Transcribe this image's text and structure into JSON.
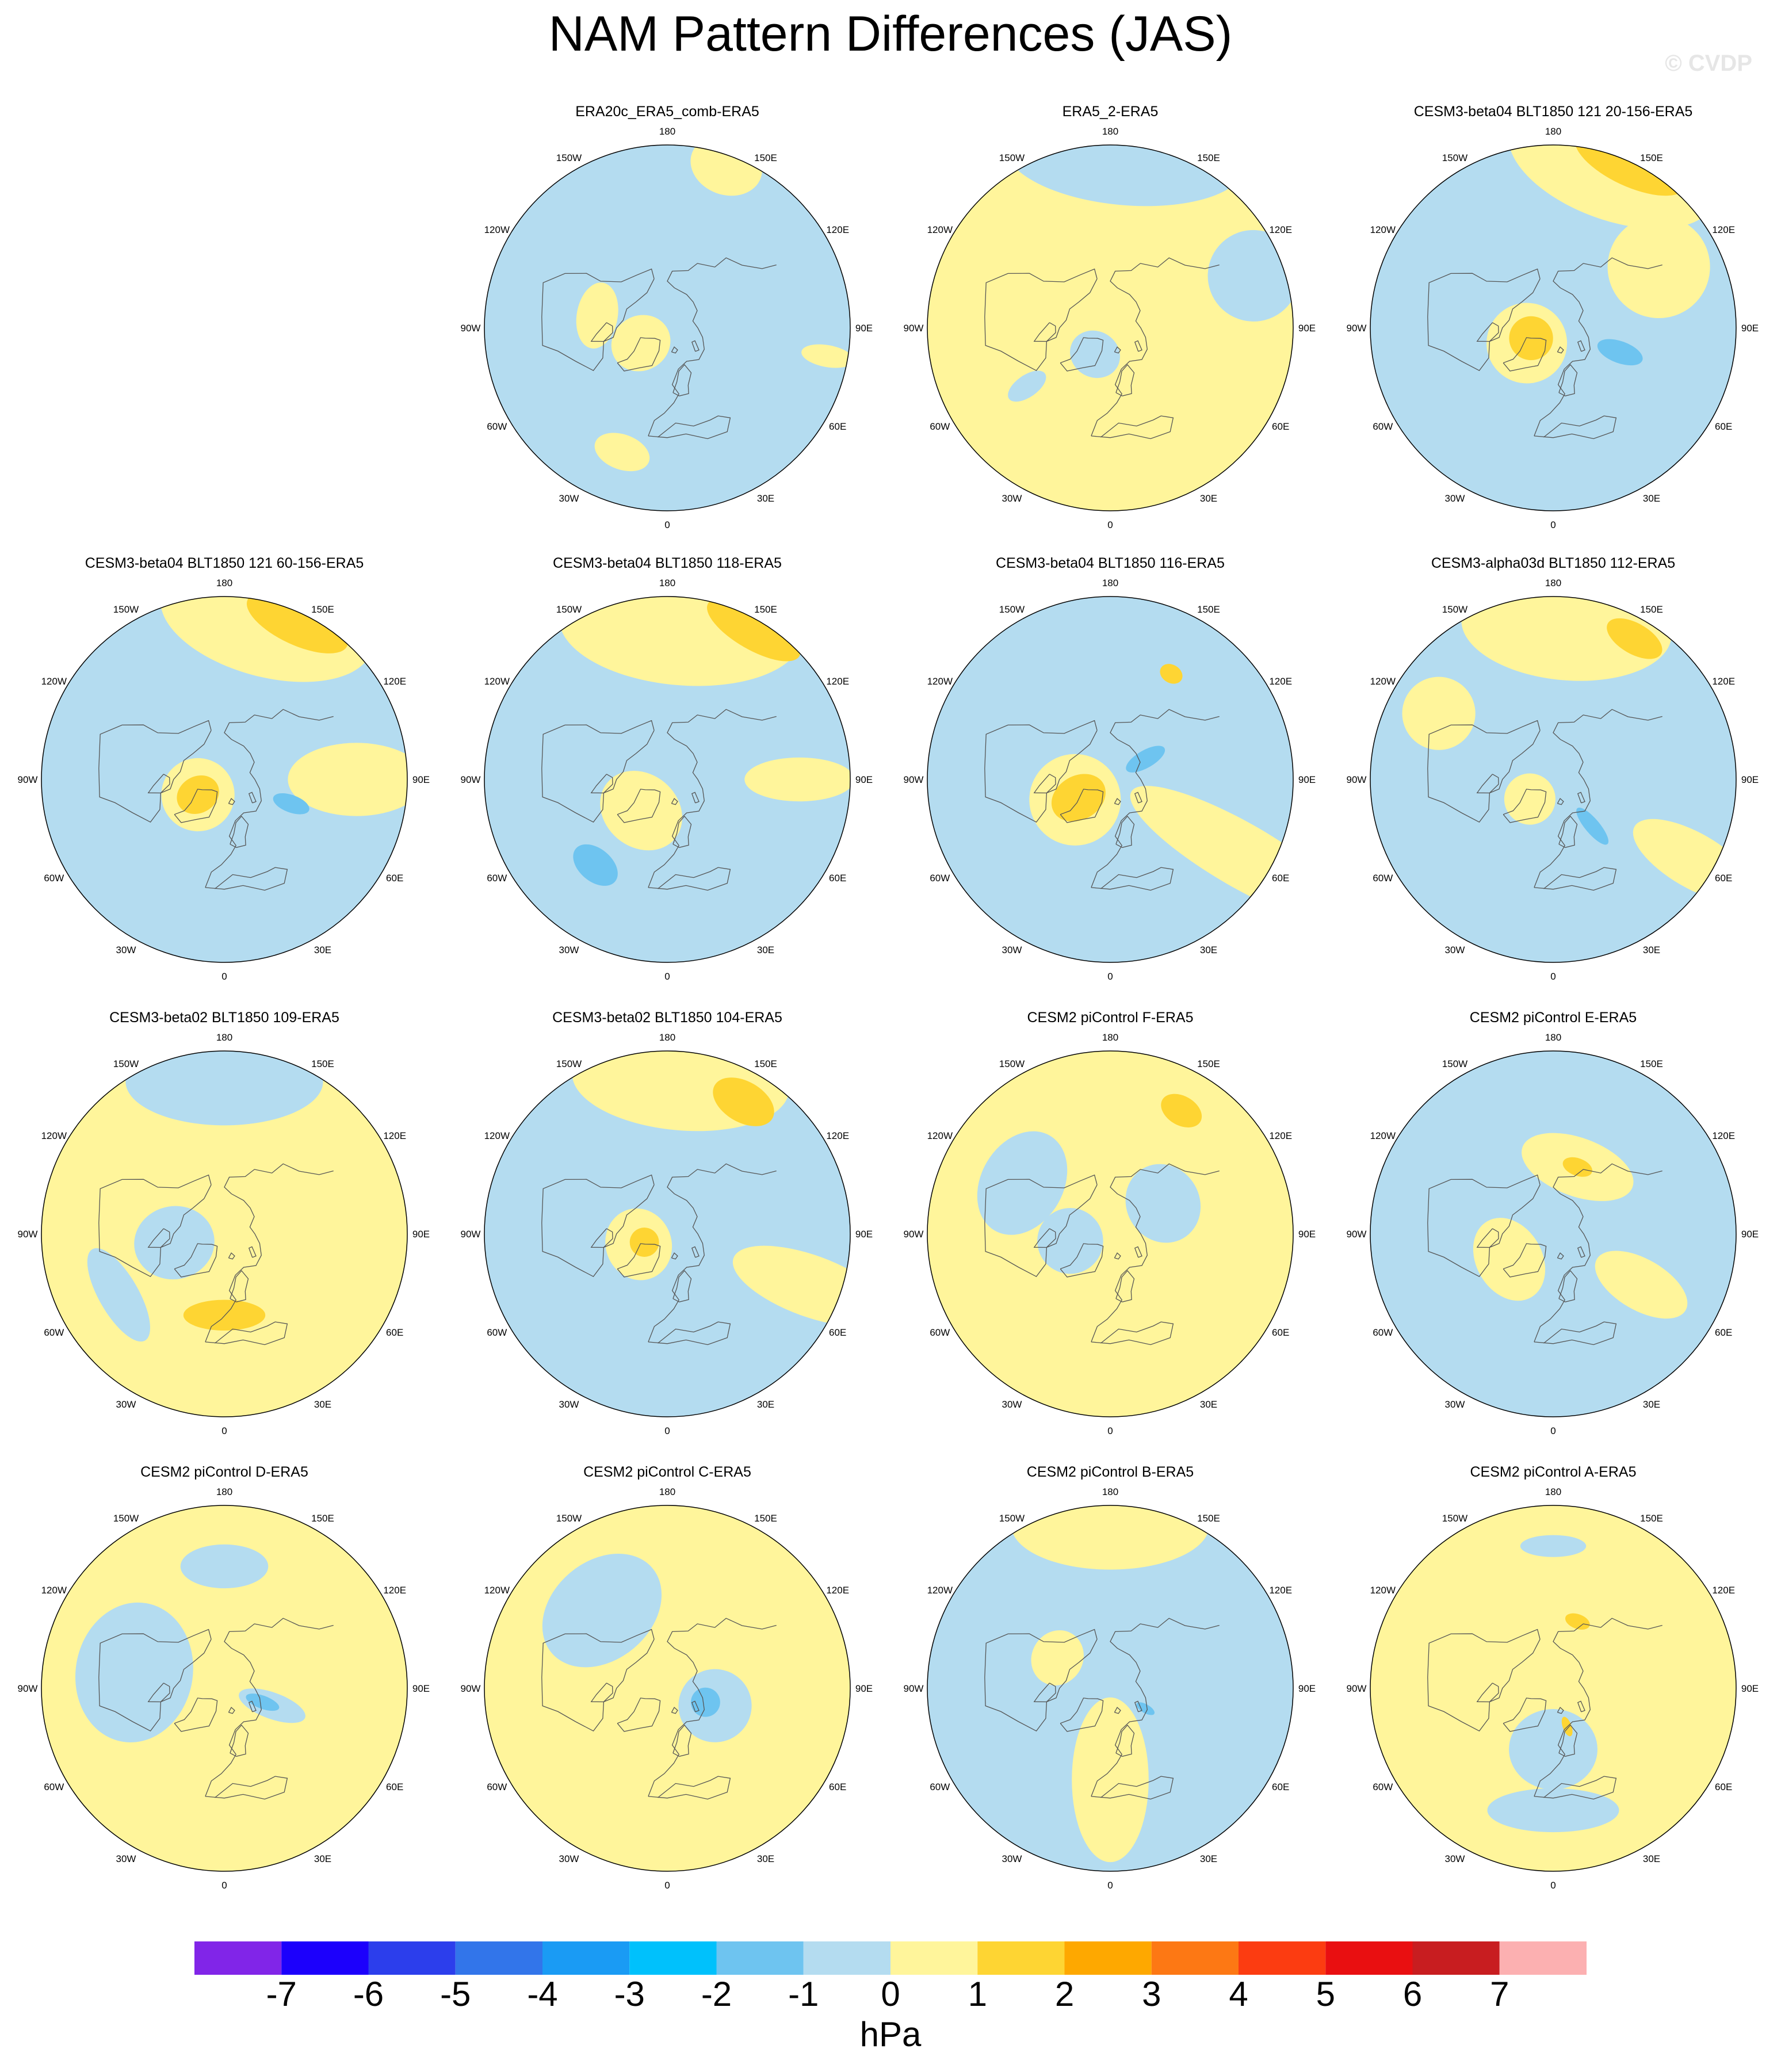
{
  "title": "NAM Pattern Differences (JAS)",
  "watermark": "© CVDP",
  "lon_labels": [
    "180",
    "150E",
    "120E",
    "90E",
    "60E",
    "30E",
    "0",
    "30W",
    "60W",
    "90W",
    "120W",
    "150W"
  ],
  "panels": [
    {
      "title": "ERA20c_ERA5_comb-ERA5",
      "base": "neg",
      "blobs": [
        {
          "lon": -60,
          "lat": 75,
          "r": 0.15,
          "rx": 1.0,
          "ry": 1.1,
          "level": "pos1"
        },
        {
          "lon": -100,
          "lat": 55,
          "r": 0.14,
          "rx": 1.3,
          "ry": 0.8,
          "level": "pos1"
        },
        {
          "lon": -20,
          "lat": 25,
          "r": 0.12,
          "rx": 1.3,
          "ry": 0.8,
          "level": "pos1"
        },
        {
          "lon": 160,
          "lat": 5,
          "r": 0.2,
          "rx": 1.0,
          "ry": 0.8,
          "level": "pos1"
        },
        {
          "lon": 80,
          "lat": 10,
          "r": 0.12,
          "rx": 0.5,
          "ry": 1.2,
          "level": "pos1"
        }
      ]
    },
    {
      "title": "ERA5_2-ERA5",
      "base": "pos1",
      "blobs": [
        {
          "lon": 175,
          "lat": 5,
          "r": 0.3,
          "rx": 2.2,
          "ry": 0.9,
          "level": "neg"
        },
        {
          "lon": 110,
          "lat": 15,
          "r": 0.25,
          "rx": 1.0,
          "ry": 1.0,
          "level": "neg"
        },
        {
          "lon": -30,
          "lat": 75,
          "r": 0.14,
          "rx": 1.0,
          "ry": 0.9,
          "level": "neg"
        },
        {
          "lon": -55,
          "lat": 40,
          "r": 0.1,
          "rx": 0.6,
          "ry": 1.2,
          "level": "neg"
        }
      ]
    },
    {
      "title": "CESM3-beta04 BLT1850 121 20-156-ERA5",
      "base": "neg",
      "blobs": [
        {
          "lon": 160,
          "lat": 5,
          "r": 0.33,
          "rx": 1.8,
          "ry": 0.9,
          "level": "pos1"
        },
        {
          "lon": 155,
          "lat": 0,
          "r": 0.22,
          "rx": 1.5,
          "ry": 0.6,
          "level": "pos2"
        },
        {
          "lon": 120,
          "lat": 30,
          "r": 0.28,
          "rx": 1.0,
          "ry": 1.0,
          "level": "pos1"
        },
        {
          "lon": -60,
          "lat": 75,
          "r": 0.22,
          "rx": 1.0,
          "ry": 1.0,
          "level": "pos1"
        },
        {
          "lon": -65,
          "lat": 78,
          "r": 0.12,
          "rx": 1.0,
          "ry": 1.0,
          "level": "pos2"
        },
        {
          "lon": 70,
          "lat": 55,
          "r": 0.1,
          "rx": 0.6,
          "ry": 1.3,
          "level": "neg2"
        }
      ]
    },
    {
      "title": "CESM3-beta04 BLT1850 121 60-156-ERA5",
      "base": "neg",
      "blobs": [
        {
          "lon": 165,
          "lat": 10,
          "r": 0.33,
          "rx": 1.8,
          "ry": 0.9,
          "level": "pos1"
        },
        {
          "lon": 155,
          "lat": 5,
          "r": 0.2,
          "rx": 1.5,
          "ry": 0.6,
          "level": "pos2"
        },
        {
          "lon": 90,
          "lat": 25,
          "r": 0.25,
          "rx": 0.8,
          "ry": 1.5,
          "level": "pos1"
        },
        {
          "lon": -60,
          "lat": 75,
          "r": 0.2,
          "rx": 1.0,
          "ry": 1.0,
          "level": "pos1"
        },
        {
          "lon": -60,
          "lat": 75,
          "r": 0.1,
          "rx": 1.0,
          "ry": 1.2,
          "level": "pos2"
        },
        {
          "lon": 70,
          "lat": 55,
          "r": 0.08,
          "rx": 0.6,
          "ry": 1.3,
          "level": "neg2"
        }
      ]
    },
    {
      "title": "CESM3-beta04 BLT1850 118-ERA5",
      "base": "neg",
      "blobs": [
        {
          "lon": 175,
          "lat": 15,
          "r": 0.35,
          "rx": 1.9,
          "ry": 0.9,
          "level": "pos1"
        },
        {
          "lon": 150,
          "lat": 5,
          "r": 0.18,
          "rx": 1.6,
          "ry": 0.6,
          "level": "pos2"
        },
        {
          "lon": 90,
          "lat": 25,
          "r": 0.2,
          "rx": 0.6,
          "ry": 1.5,
          "level": "pos1"
        },
        {
          "lon": -40,
          "lat": 70,
          "r": 0.2,
          "rx": 1.2,
          "ry": 1.0,
          "level": "pos1"
        },
        {
          "lon": -40,
          "lat": 35,
          "r": 0.1,
          "rx": 1.4,
          "ry": 0.9,
          "level": "neg2"
        }
      ]
    },
    {
      "title": "CESM3-beta04 BLT1850 116-ERA5",
      "base": "neg",
      "blobs": [
        {
          "lon": 60,
          "lat": 15,
          "r": 0.35,
          "rx": 0.5,
          "ry": 2.0,
          "level": "pos1"
        },
        {
          "lon": -60,
          "lat": 70,
          "r": 0.25,
          "rx": 1.0,
          "ry": 1.0,
          "level": "pos1"
        },
        {
          "lon": -60,
          "lat": 72,
          "r": 0.12,
          "rx": 1.0,
          "ry": 1.3,
          "level": "pos2"
        },
        {
          "lon": 150,
          "lat": 30,
          "r": 0.05,
          "rx": 1.3,
          "ry": 1.0,
          "level": "pos2"
        },
        {
          "lon": 120,
          "lat": 70,
          "r": 0.08,
          "rx": 0.6,
          "ry": 1.5,
          "level": "neg2"
        }
      ]
    },
    {
      "title": "CESM3-alpha03d BLT1850 112-ERA5",
      "base": "neg",
      "blobs": [
        {
          "lon": 175,
          "lat": 15,
          "r": 0.32,
          "rx": 1.8,
          "ry": 0.9,
          "level": "pos1"
        },
        {
          "lon": 150,
          "lat": 10,
          "r": 0.12,
          "rx": 1.4,
          "ry": 0.7,
          "level": "pos2"
        },
        {
          "lon": 60,
          "lat": 10,
          "r": 0.25,
          "rx": 0.6,
          "ry": 1.5,
          "level": "pos1"
        },
        {
          "lon": -50,
          "lat": 75,
          "r": 0.14,
          "rx": 1.0,
          "ry": 1.0,
          "level": "pos1"
        },
        {
          "lon": -120,
          "lat": 25,
          "r": 0.2,
          "rx": 1.0,
          "ry": 1.0,
          "level": "pos1"
        },
        {
          "lon": 40,
          "lat": 60,
          "r": 0.08,
          "rx": 0.5,
          "ry": 1.6,
          "level": "neg2"
        }
      ]
    },
    {
      "title": "CESM3-beta02 BLT1850 109-ERA5",
      "base": "pos1",
      "blobs": [
        {
          "lon": 180,
          "lat": 15,
          "r": 0.3,
          "rx": 1.8,
          "ry": 0.8,
          "level": "neg"
        },
        {
          "lon": -80,
          "lat": 65,
          "r": 0.2,
          "rx": 1.0,
          "ry": 1.1,
          "level": "neg"
        },
        {
          "lon": -60,
          "lat": 30,
          "r": 0.18,
          "rx": 1.6,
          "ry": 0.6,
          "level": "neg"
        },
        {
          "lon": 0,
          "lat": 50,
          "r": 0.14,
          "rx": 1.6,
          "ry": 0.6,
          "level": "pos2"
        }
      ]
    },
    {
      "title": "CESM3-beta02 BLT1850 104-ERA5",
      "base": "neg",
      "blobs": [
        {
          "lon": 175,
          "lat": 15,
          "r": 0.33,
          "rx": 1.8,
          "ry": 0.8,
          "level": "pos1"
        },
        {
          "lon": 150,
          "lat": 15,
          "r": 0.14,
          "rx": 1.3,
          "ry": 0.8,
          "level": "pos2"
        },
        {
          "lon": 70,
          "lat": 15,
          "r": 0.28,
          "rx": 0.6,
          "ry": 1.6,
          "level": "pos1"
        },
        {
          "lon": -70,
          "lat": 75,
          "r": 0.18,
          "rx": 1.1,
          "ry": 1.0,
          "level": "pos1"
        },
        {
          "lon": -70,
          "lat": 78,
          "r": 0.08,
          "rx": 1.0,
          "ry": 1.0,
          "level": "pos2"
        }
      ]
    },
    {
      "title": "CESM2 piControl F-ERA5",
      "base": "pos1",
      "blobs": [
        {
          "lon": -120,
          "lat": 40,
          "r": 0.25,
          "rx": 1.2,
          "ry": 0.9,
          "level": "neg"
        },
        {
          "lon": 120,
          "lat": 60,
          "r": 0.2,
          "rx": 1.1,
          "ry": 1.0,
          "level": "neg"
        },
        {
          "lon": -80,
          "lat": 70,
          "r": 0.18,
          "rx": 1.0,
          "ry": 1.0,
          "level": "neg"
        },
        {
          "lon": 150,
          "lat": 20,
          "r": 0.1,
          "rx": 1.2,
          "ry": 0.8,
          "level": "pos2"
        }
      ]
    },
    {
      "title": "CESM2 piControl E-ERA5",
      "base": "neg",
      "blobs": [
        {
          "lon": 160,
          "lat": 55,
          "r": 0.2,
          "rx": 1.6,
          "ry": 0.8,
          "level": "pos1"
        },
        {
          "lon": 60,
          "lat": 40,
          "r": 0.2,
          "rx": 0.7,
          "ry": 1.4,
          "level": "pos1"
        },
        {
          "lon": -60,
          "lat": 65,
          "r": 0.2,
          "rx": 1.2,
          "ry": 0.9,
          "level": "pos1"
        },
        {
          "lon": 160,
          "lat": 55,
          "r": 0.06,
          "rx": 1.4,
          "ry": 0.8,
          "level": "pos2"
        }
      ]
    },
    {
      "title": "CESM2 piControl D-ERA5",
      "base": "pos1",
      "blobs": [
        {
          "lon": 180,
          "lat": 30,
          "r": 0.15,
          "rx": 1.6,
          "ry": 0.8,
          "level": "neg"
        },
        {
          "lon": -100,
          "lat": 45,
          "r": 0.32,
          "rx": 1.2,
          "ry": 1.0,
          "level": "neg"
        },
        {
          "lon": 70,
          "lat": 65,
          "r": 0.12,
          "rx": 0.6,
          "ry": 1.6,
          "level": "neg"
        },
        {
          "lon": 70,
          "lat": 70,
          "r": 0.06,
          "rx": 0.6,
          "ry": 1.6,
          "level": "neg2"
        }
      ]
    },
    {
      "title": "CESM2 piControl C-ERA5",
      "base": "pos1",
      "blobs": [
        {
          "lon": -140,
          "lat": 40,
          "r": 0.3,
          "rx": 1.2,
          "ry": 0.9,
          "level": "neg"
        },
        {
          "lon": 70,
          "lat": 65,
          "r": 0.2,
          "rx": 1.0,
          "ry": 1.0,
          "level": "neg"
        },
        {
          "lon": 70,
          "lat": 70,
          "r": 0.08,
          "rx": 1.0,
          "ry": 1.0,
          "level": "neg2"
        }
      ]
    },
    {
      "title": "CESM2 piControl B-ERA5",
      "base": "neg",
      "blobs": [
        {
          "lon": 180,
          "lat": 10,
          "r": 0.3,
          "rx": 1.8,
          "ry": 0.8,
          "level": "pos1"
        },
        {
          "lon": 0,
          "lat": 45,
          "r": 0.3,
          "rx": 0.7,
          "ry": 1.5,
          "level": "pos1"
        },
        {
          "lon": -120,
          "lat": 60,
          "r": 0.14,
          "rx": 1.1,
          "ry": 1.0,
          "level": "pos1"
        },
        {
          "lon": 60,
          "lat": 70,
          "r": 0.04,
          "rx": 0.6,
          "ry": 1.4,
          "level": "neg2"
        }
      ]
    },
    {
      "title": "CESM2 piControl A-ERA5",
      "base": "pos1",
      "blobs": [
        {
          "lon": 0,
          "lat": 60,
          "r": 0.22,
          "rx": 1.1,
          "ry": 1.0,
          "level": "neg"
        },
        {
          "lon": 0,
          "lat": 30,
          "r": 0.2,
          "rx": 1.8,
          "ry": 0.6,
          "level": "neg"
        },
        {
          "lon": 180,
          "lat": 20,
          "r": 0.1,
          "rx": 1.8,
          "ry": 0.6,
          "level": "neg"
        },
        {
          "lon": 160,
          "lat": 55,
          "r": 0.05,
          "rx": 1.4,
          "ry": 0.8,
          "level": "pos2"
        },
        {
          "lon": 20,
          "lat": 70,
          "r": 0.04,
          "rx": 0.6,
          "ry": 1.4,
          "level": "pos2"
        }
      ]
    }
  ],
  "colors": {
    "neg": "#b4dcf0",
    "neg2": "#6ec4f0",
    "pos1": "#fff59b",
    "pos2": "#fed533",
    "coast": "#555555"
  },
  "colorbar": {
    "units": "hPa",
    "levels": [
      "-7",
      "-6",
      "-5",
      "-4",
      "-3",
      "-2",
      "-1",
      "0",
      "1",
      "2",
      "3",
      "4",
      "5",
      "6",
      "7"
    ],
    "colors": [
      "#8125e8",
      "#1c00fc",
      "#2c3eec",
      "#3275ea",
      "#1a9bf4",
      "#00c1fc",
      "#6ec4f0",
      "#b4dcf0",
      "#fff59b",
      "#fed533",
      "#fea800",
      "#fd7814",
      "#fc3c11",
      "#e90f11",
      "#c81d20",
      "#fcb0b1"
    ]
  }
}
